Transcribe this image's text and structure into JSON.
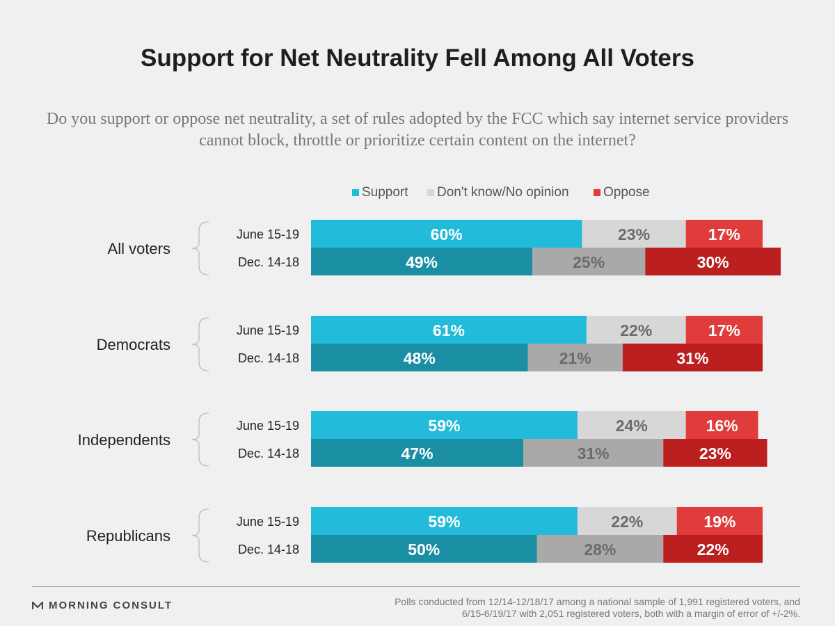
{
  "header": {
    "title": "Support for Net Neutrality Fell Among All Voters",
    "subtitle": "Do you support or oppose net neutrality, a set of rules adopted by the FCC which say internet service providers cannot block, throttle or prioritize certain content on the internet?"
  },
  "chart_data": {
    "type": "bar",
    "orientation": "horizontal",
    "stacked": "100%",
    "groups": [
      "All voters",
      "Democrats",
      "Independents",
      "Republicans"
    ],
    "periods": [
      "June 15-19",
      "Dec. 14-18"
    ],
    "series": [
      {
        "name": "Support",
        "values": [
          [
            60,
            49
          ],
          [
            61,
            48
          ],
          [
            59,
            47
          ],
          [
            59,
            50
          ]
        ]
      },
      {
        "name": "Don't know/No opinion",
        "values": [
          [
            23,
            25
          ],
          [
            22,
            21
          ],
          [
            24,
            31
          ],
          [
            22,
            28
          ]
        ]
      },
      {
        "name": "Oppose",
        "values": [
          [
            17,
            30
          ],
          [
            17,
            31
          ],
          [
            16,
            23
          ],
          [
            19,
            22
          ]
        ]
      }
    ],
    "value_suffix": "%",
    "legend_position": "top",
    "colors": {
      "june": [
        "#22bbd9",
        "#d7d7d7",
        "#e03c3c"
      ],
      "dec": [
        "#1a8fa3",
        "#a9a9a9",
        "#bc1f1f"
      ],
      "label_text": [
        "#ffffff",
        "#6b6b6b",
        "#ffffff"
      ]
    },
    "legend_colors": [
      "#22bbd9",
      "#d7d7d7",
      "#e03c3c"
    ]
  },
  "footer": {
    "brand": "MORNING CONSULT",
    "note_line1": "Polls conducted from 12/14-12/18/17 among a national sample of 1,991 registered voters, and",
    "note_line2": "6/15-6/19/17 with 2,051 registered voters, both with a margin of error of +/-2%."
  }
}
